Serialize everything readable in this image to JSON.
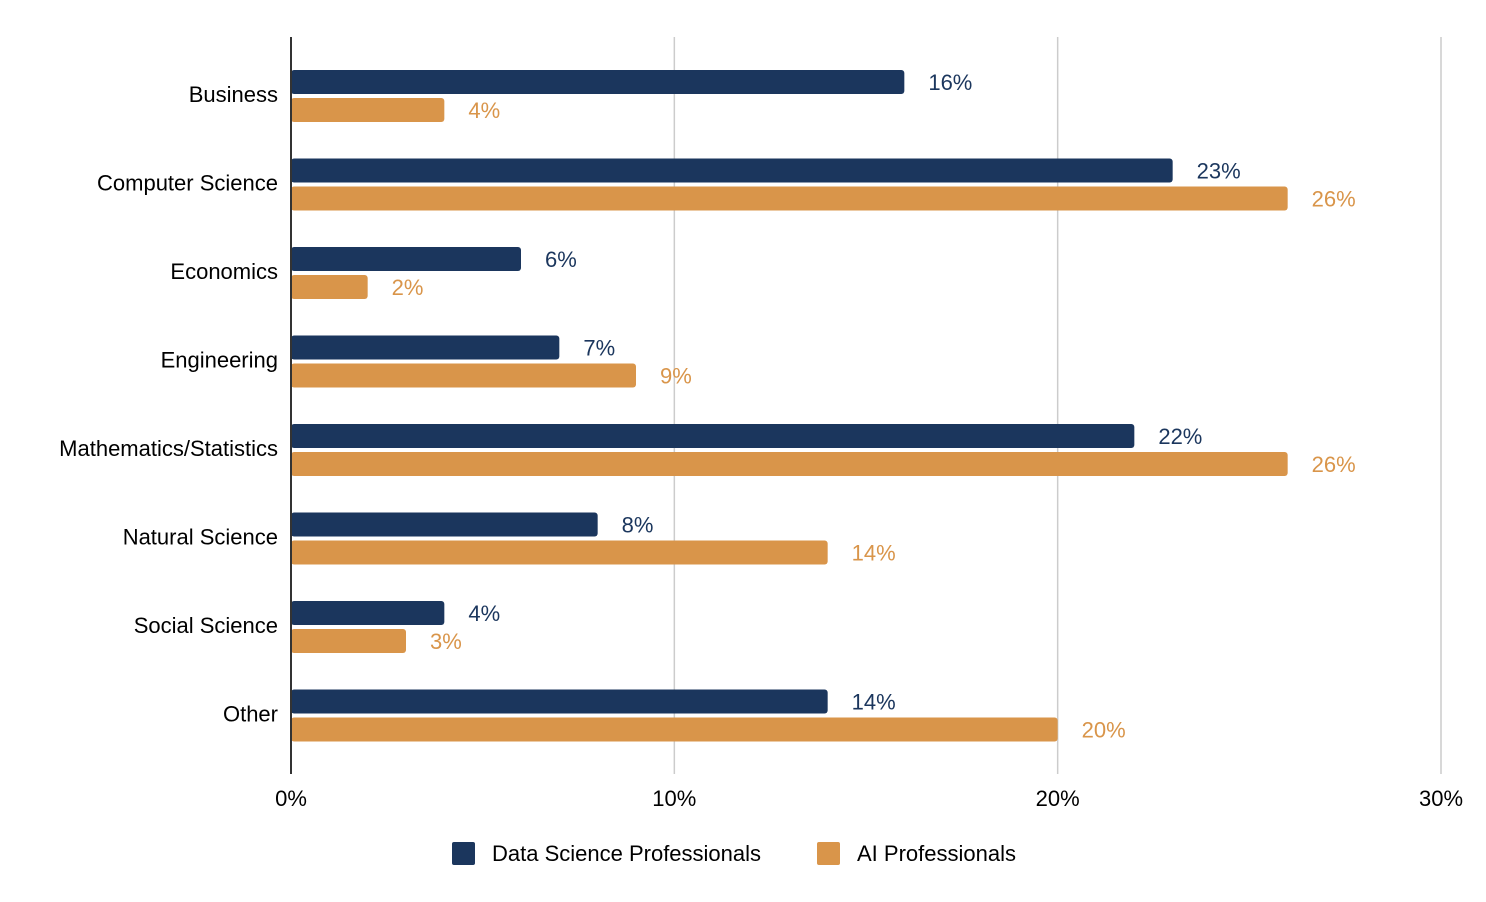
{
  "chart_data": {
    "type": "bar",
    "orientation": "horizontal",
    "title": "",
    "xlabel": "",
    "ylabel": "",
    "categories": [
      "Business",
      "Computer Science",
      "Economics",
      "Engineering",
      "Mathematics/Statistics",
      "Natural Science",
      "Social Science",
      "Other"
    ],
    "series": [
      {
        "name": "Data Science Professionals",
        "color": "#1b365d",
        "values": [
          16,
          23,
          6,
          7,
          22,
          8,
          4,
          14
        ],
        "labels": [
          "16%",
          "23%",
          "6%",
          "7%",
          "22%",
          "8%",
          "4%",
          "14%"
        ]
      },
      {
        "name": "AI Professionals",
        "color": "#d9954a",
        "values": [
          4,
          26,
          2,
          9,
          26,
          14,
          3,
          20
        ],
        "labels": [
          "4%",
          "26%",
          "2%",
          "9%",
          "26%",
          "14%",
          "3%",
          "20%"
        ]
      }
    ],
    "xlim": [
      0,
      30
    ],
    "ticks": [
      0,
      10,
      20,
      30
    ],
    "tick_labels": [
      "0%",
      "10%",
      "20%",
      "30%"
    ],
    "grid": true,
    "legend": "bottom-center"
  }
}
